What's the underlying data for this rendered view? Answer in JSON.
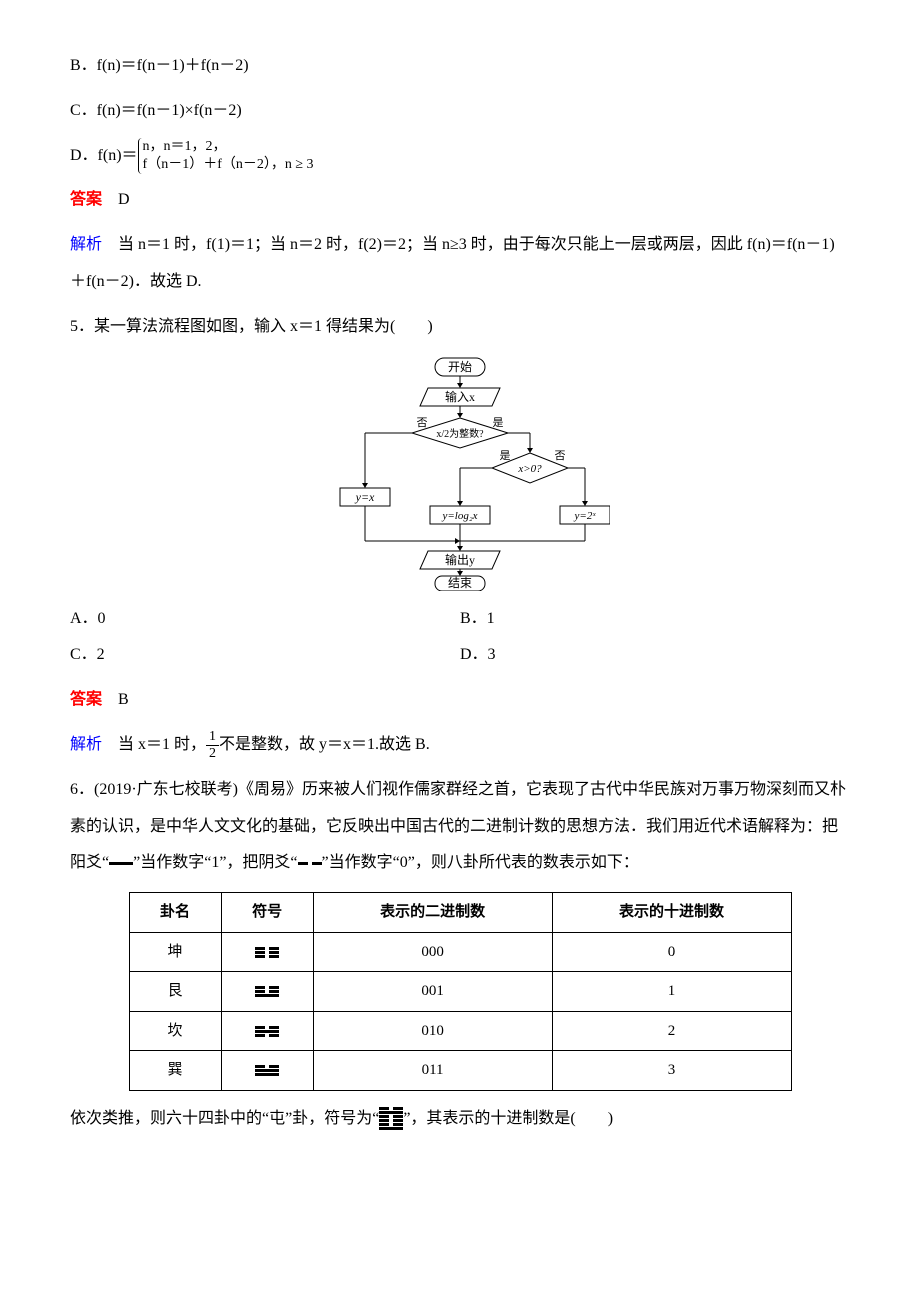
{
  "options_top": {
    "b": "B．f(n)＝f(n－1)＋f(n－2)",
    "c": "C．f(n)＝f(n－1)×f(n－2)",
    "d_prefix": "D．f(n)＝",
    "d_line1": "n，n＝1，2，",
    "d_line2": "f（n－1）＋f（n－2），n ≥ 3"
  },
  "answer_label": "答案",
  "analysis_label": "解析",
  "q4": {
    "answer": "D",
    "analysis": "当 n＝1 时，f(1)＝1；当 n＝2 时，f(2)＝2；当 n≥3 时，由于每次只能上一层或两层，因此 f(n)＝f(n－1)＋f(n－2)．故选 D."
  },
  "q5": {
    "stem": "5．某一算法流程图如图，输入 x＝1 得结果为(　　)",
    "flow": {
      "start": "开始",
      "input": "输入x",
      "cond1": "x/2为整数?",
      "yes": "是",
      "no": "否",
      "cond2": "x>0?",
      "branch_left": "y=x",
      "branch_mid": "y=log₂x",
      "branch_right": "y=2ˣ",
      "output": "输出y",
      "end": "结束",
      "bg": "#ffffff",
      "border": "#000000"
    },
    "opts": {
      "a": "A．0",
      "b": "B．1",
      "c": "C．2",
      "d": "D．3"
    },
    "answer": "B",
    "analysis_pre": "当 x＝1 时，",
    "frac_num": "1",
    "frac_den": "2",
    "analysis_post": "不是整数，故 y＝x＝1.故选 B."
  },
  "q6": {
    "stem": "6．(2019·广东七校联考)《周易》历来被人们视作儒家群经之首，它表现了古代中华民族对万事万物深刻而又朴素的认识，是中华人文文化的基础，它反映出中国古代的二进制计数的思想方法．我们用近代术语解释为：把阳爻“",
    "stem_mid1": "”当作数字“1”，把阴爻“",
    "stem_mid2": "”当作数字“0”，则八卦所代表的数表示如下：",
    "headers": [
      "卦名",
      "符号",
      "表示的二进制数",
      "表示的十进制数"
    ],
    "rows": [
      {
        "name": "坤",
        "sym": [
          "yin",
          "yin",
          "yin"
        ],
        "bin": "000",
        "dec": "0"
      },
      {
        "name": "艮",
        "sym": [
          "yin",
          "yin",
          "yang"
        ],
        "bin": "001",
        "dec": "1"
      },
      {
        "name": "坎",
        "sym": [
          "yin",
          "yang",
          "yin"
        ],
        "bin": "010",
        "dec": "2"
      },
      {
        "name": "巽",
        "sym": [
          "yin",
          "yang",
          "yang"
        ],
        "bin": "011",
        "dec": "3"
      }
    ],
    "tail_pre": "依次类推，则六十四卦中的“屯”卦，符号为“",
    "hexagram": [
      "yin",
      "yang",
      "yin",
      "yin",
      "yin",
      "yang"
    ],
    "tail_post": "”，其表示的十进制数是(　　)"
  }
}
